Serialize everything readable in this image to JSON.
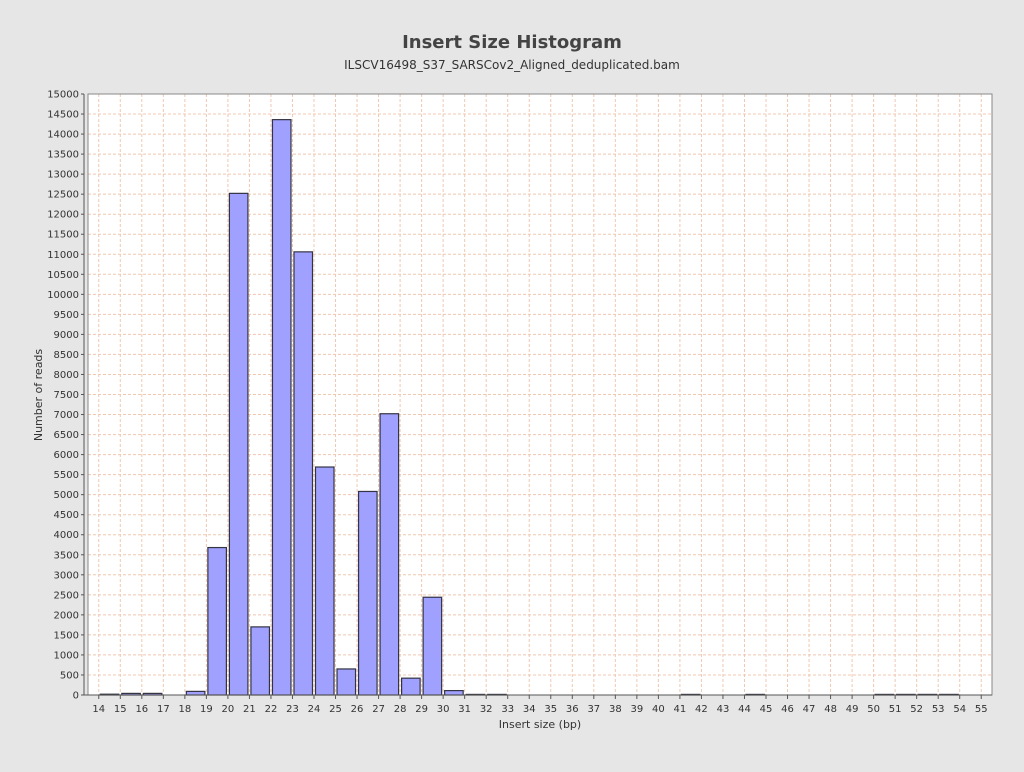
{
  "chart_data": {
    "type": "bar",
    "title": "Insert Size Histogram",
    "subtitle": "ILSCV16498_S37_SARSCov2_Aligned_deduplicated.bam",
    "xlabel": "Insert size (bp)",
    "ylabel": "Number of reads",
    "xlim": [
      13.5,
      55.5
    ],
    "ylim": [
      0,
      15000
    ],
    "x_ticks": [
      14,
      15,
      16,
      17,
      18,
      19,
      20,
      21,
      22,
      23,
      24,
      25,
      26,
      27,
      28,
      29,
      30,
      31,
      32,
      33,
      34,
      35,
      36,
      37,
      38,
      39,
      40,
      41,
      42,
      43,
      44,
      45,
      46,
      47,
      48,
      49,
      50,
      51,
      52,
      53,
      54,
      55
    ],
    "y_ticks": [
      0,
      500,
      1000,
      1500,
      2000,
      2500,
      3000,
      3500,
      4000,
      4500,
      5000,
      5500,
      6000,
      6500,
      7000,
      7500,
      8000,
      8500,
      9000,
      9500,
      10000,
      10500,
      11000,
      11500,
      12000,
      12500,
      13000,
      13500,
      14000,
      14500,
      15000
    ],
    "grid": true,
    "bars": [
      {
        "start": 14,
        "end": 15,
        "value": 20
      },
      {
        "start": 15,
        "end": 16,
        "value": 40
      },
      {
        "start": 16,
        "end": 17,
        "value": 40
      },
      {
        "start": 18,
        "end": 19,
        "value": 90
      },
      {
        "start": 19,
        "end": 20,
        "value": 3680
      },
      {
        "start": 20,
        "end": 21,
        "value": 12520
      },
      {
        "start": 21,
        "end": 22,
        "value": 1700
      },
      {
        "start": 22,
        "end": 23,
        "value": 14360
      },
      {
        "start": 23,
        "end": 24,
        "value": 11060
      },
      {
        "start": 24,
        "end": 25,
        "value": 5690
      },
      {
        "start": 25,
        "end": 26,
        "value": 650
      },
      {
        "start": 26,
        "end": 27,
        "value": 5080
      },
      {
        "start": 27,
        "end": 28,
        "value": 7020
      },
      {
        "start": 28,
        "end": 29,
        "value": 420
      },
      {
        "start": 29,
        "end": 30,
        "value": 2440
      },
      {
        "start": 30,
        "end": 31,
        "value": 110
      },
      {
        "start": 31,
        "end": 32,
        "value": 5
      },
      {
        "start": 32,
        "end": 33,
        "value": 5
      },
      {
        "start": 41,
        "end": 42,
        "value": 5
      },
      {
        "start": 44,
        "end": 45,
        "value": 5
      },
      {
        "start": 50,
        "end": 51,
        "value": 5
      },
      {
        "start": 51,
        "end": 52,
        "value": 5
      },
      {
        "start": 52,
        "end": 53,
        "value": 5
      },
      {
        "start": 53,
        "end": 54,
        "value": 5
      }
    ],
    "colors": {
      "bar_fill": "#a0a0ff",
      "bar_stroke": "#333344",
      "grid": "#f0c8b0",
      "plot_bg": "#ffffff",
      "page_bg": "#e6e6e6",
      "text": "#333333"
    }
  }
}
